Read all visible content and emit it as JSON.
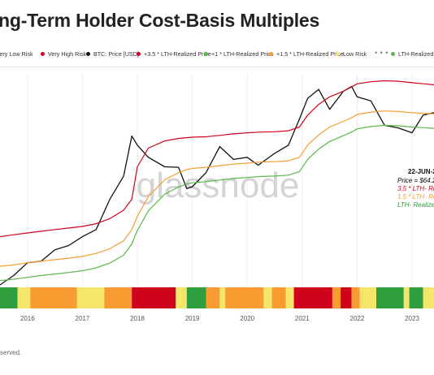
{
  "title": "ng-Term Holder Cost-Basis Multiples",
  "legend": [
    {
      "label": "Very Low Risk",
      "color": "#2e9e3e"
    },
    {
      "label": "Very High Risk",
      "color": "#d0021b"
    },
    {
      "label": "BTC: Price [USD]",
      "color": "#111111"
    },
    {
      "label": "+3.5 * LTH-Realized Price",
      "color": "#d0021b"
    },
    {
      "label": "+1 * LTH-Realized Price",
      "color": "#58b848"
    },
    {
      "label": "+1.5 * LTH-Realized Price",
      "color": "#f89c32"
    },
    {
      "label": "Low Risk",
      "color": "#f5e56b"
    },
    {
      "label": "LTH-Realized Price",
      "color": "#58b848"
    }
  ],
  "legend_more": "• • •",
  "watermark": "glassnode",
  "footer": "served.",
  "annotation": {
    "date": "22-JUN-2",
    "lines": [
      {
        "text": "Price = $64.2",
        "color": "#111111"
      },
      {
        "text": "3.5 * LTH- Rea",
        "color": "#d0021b"
      },
      {
        "text": "1.5 * LTH- Rea",
        "color": "#f89c32"
      },
      {
        "text": "LTH- Realized",
        "color": "#2e9e3e"
      }
    ]
  },
  "chart_data": {
    "type": "line",
    "title": "ng-Term Holder Cost-Basis Multiples",
    "x_ticks": [
      "2016",
      "2017",
      "2018",
      "2019",
      "2020",
      "2021",
      "2022",
      "2023"
    ],
    "x": [
      2015.5,
      2015.75,
      2016.0,
      2016.25,
      2016.5,
      2016.75,
      2017.0,
      2017.25,
      2017.5,
      2017.75,
      2017.9,
      2018.0,
      2018.2,
      2018.5,
      2018.75,
      2018.9,
      2019.0,
      2019.25,
      2019.5,
      2019.75,
      2020.0,
      2020.2,
      2020.5,
      2020.75,
      2020.95,
      2021.1,
      2021.3,
      2021.5,
      2021.75,
      2021.9,
      2022.0,
      2022.25,
      2022.5,
      2022.75,
      2023.0,
      2023.2,
      2023.4
    ],
    "series": [
      {
        "name": "BTC: Price [USD]",
        "color": "#111111",
        "values": [
          230,
          300,
          430,
          450,
          620,
          700,
          900,
          1100,
          2600,
          5000,
          15500,
          12000,
          8500,
          6500,
          6400,
          3500,
          3700,
          5500,
          11500,
          8000,
          8500,
          6800,
          9500,
          12000,
          25000,
          45000,
          58000,
          33000,
          55000,
          63000,
          47000,
          42000,
          21000,
          19500,
          17000,
          28000,
          30000
        ]
      },
      {
        "name": "+3.5 * LTH-Realized Price",
        "color": "#d0021b",
        "values": [
          900,
          950,
          1000,
          1050,
          1100,
          1150,
          1200,
          1300,
          1500,
          1900,
          2600,
          6500,
          11000,
          13500,
          14500,
          14800,
          15000,
          15200,
          15800,
          16500,
          17000,
          17300,
          17500,
          18000,
          20000,
          28000,
          38000,
          47000,
          55000,
          62000,
          68000,
          72000,
          74000,
          73000,
          70000,
          68000,
          66000
        ]
      },
      {
        "name": "+1.5 * LTH-Realized Price",
        "color": "#f89c32",
        "values": [
          390,
          405,
          430,
          450,
          470,
          490,
          515,
          560,
          640,
          800,
          1100,
          1600,
          2800,
          4500,
          5500,
          6000,
          6200,
          6400,
          6700,
          7000,
          7200,
          7400,
          7500,
          7700,
          8500,
          12000,
          16000,
          20000,
          23500,
          26000,
          28500,
          30500,
          31500,
          31000,
          30000,
          29500,
          29000
        ]
      },
      {
        "name": "LTH-Realized Price",
        "color": "#58b848",
        "values": [
          260,
          270,
          285,
          300,
          313,
          327,
          343,
          373,
          427,
          533,
          733,
          1070,
          1870,
          3000,
          3670,
          4000,
          4130,
          4270,
          4470,
          4670,
          4800,
          4930,
          5000,
          5130,
          5670,
          8000,
          10700,
          13300,
          15700,
          17300,
          19000,
          20300,
          21000,
          20700,
          20000,
          19700,
          19300
        ]
      }
    ],
    "risk_band": {
      "labels": [
        "Very Low Risk",
        "Low Risk",
        "High Risk",
        "Very High Risk"
      ],
      "colors": [
        "#2e9e3e",
        "#f5e56b",
        "#f89c32",
        "#d0021b"
      ],
      "segments": [
        [
          2015.5,
          2015.82,
          "Very Low Risk"
        ],
        [
          2015.82,
          2016.05,
          "Low Risk"
        ],
        [
          2016.05,
          2016.9,
          "High Risk"
        ],
        [
          2016.9,
          2017.4,
          "Low Risk"
        ],
        [
          2017.4,
          2017.9,
          "High Risk"
        ],
        [
          2017.9,
          2018.7,
          "Very High Risk"
        ],
        [
          2018.7,
          2018.9,
          "Low Risk"
        ],
        [
          2018.9,
          2019.25,
          "Very Low Risk"
        ],
        [
          2019.25,
          2019.5,
          "High Risk"
        ],
        [
          2019.5,
          2019.6,
          "Low Risk"
        ],
        [
          2019.6,
          2020.3,
          "High Risk"
        ],
        [
          2020.3,
          2020.45,
          "Low Risk"
        ],
        [
          2020.45,
          2020.7,
          "High Risk"
        ],
        [
          2020.7,
          2020.85,
          "Low Risk"
        ],
        [
          2020.85,
          2021.55,
          "Very High Risk"
        ],
        [
          2021.55,
          2021.7,
          "High Risk"
        ],
        [
          2021.7,
          2021.9,
          "Very High Risk"
        ],
        [
          2021.9,
          2022.05,
          "High Risk"
        ],
        [
          2022.05,
          2022.35,
          "Low Risk"
        ],
        [
          2022.35,
          2022.85,
          "Very Low Risk"
        ],
        [
          2022.85,
          2022.95,
          "Low Risk"
        ],
        [
          2022.95,
          2023.2,
          "Very Low Risk"
        ],
        [
          2023.2,
          2023.4,
          "Low Risk"
        ]
      ]
    },
    "xlim": [
      2015.5,
      2023.4
    ],
    "y_scale": "log",
    "grid": true
  }
}
